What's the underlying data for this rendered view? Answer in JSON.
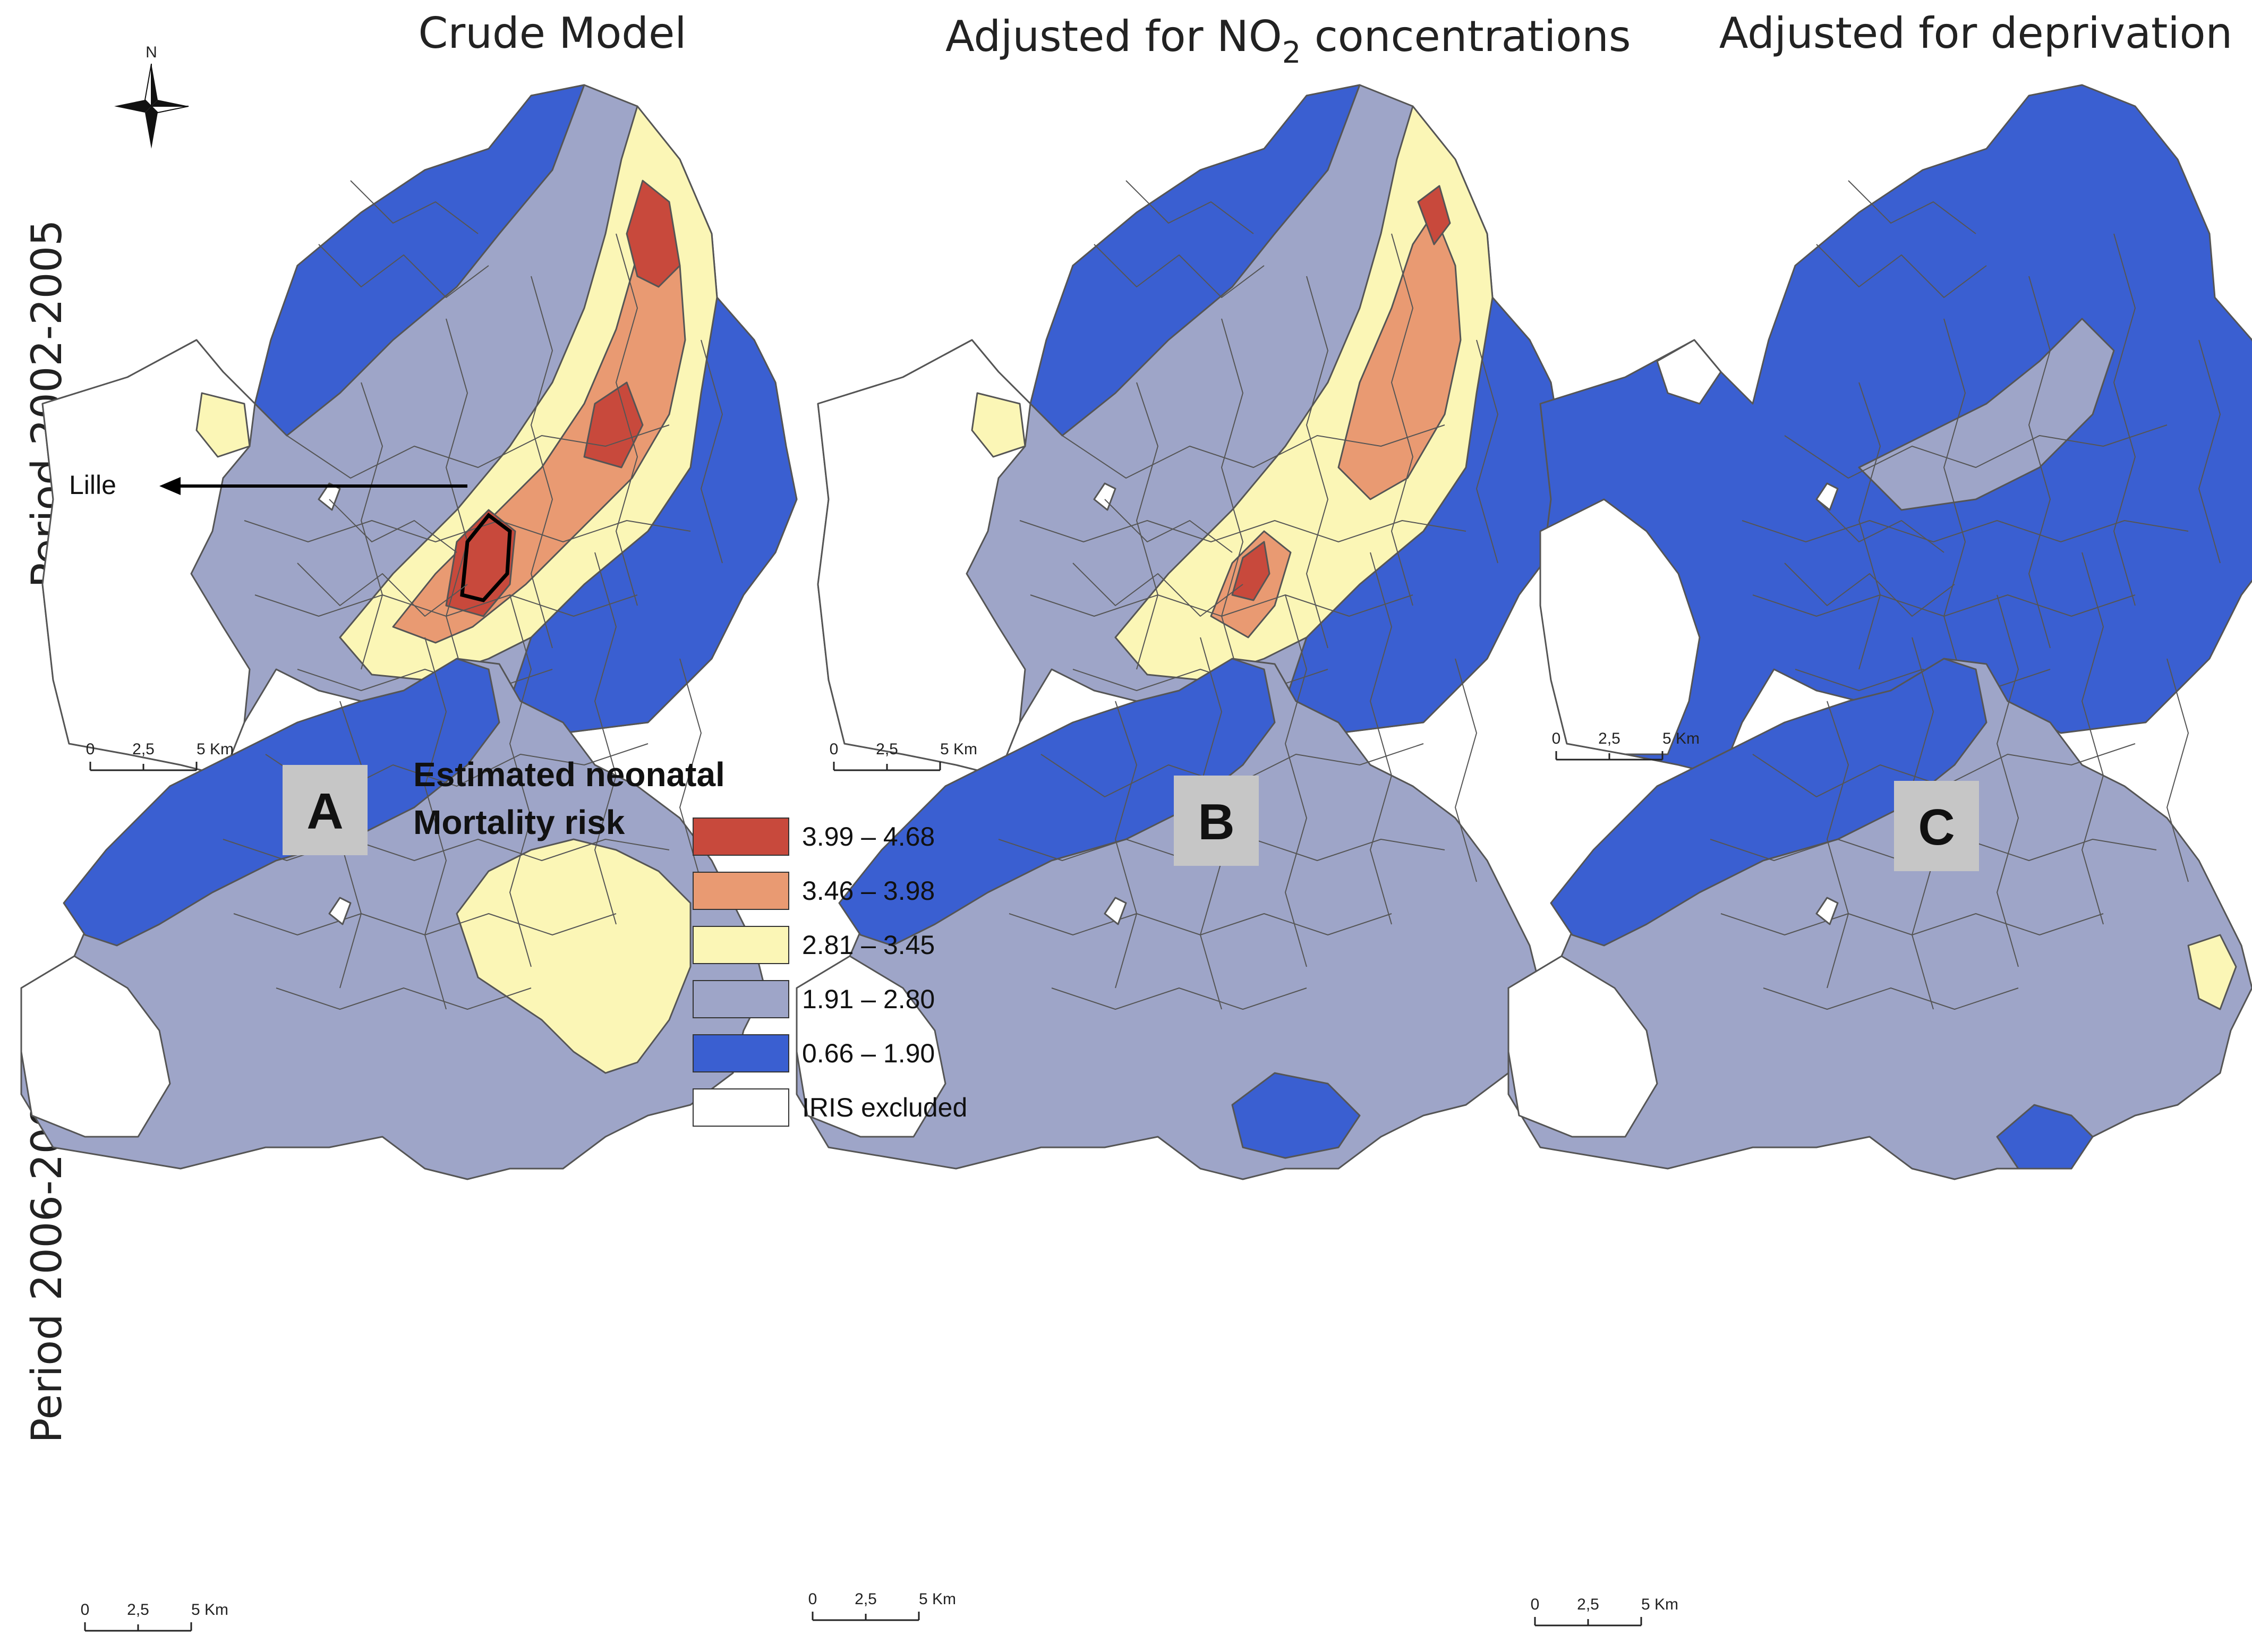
{
  "titles": {
    "crude": "Crude Model",
    "no2_prefix": "Adjusted for NO",
    "no2_sub": "2",
    "no2_suffix": " concentrations",
    "deprivation": "Adjusted for deprivation"
  },
  "periods": [
    "Period 2002-2005",
    "Period 2006-2009"
  ],
  "panel_letters": [
    "A",
    "B",
    "C"
  ],
  "city_label": "Lille",
  "compass": "N",
  "scale": {
    "ticks": [
      "0",
      "2,5",
      "5 Km"
    ]
  },
  "legend": {
    "title_line1": "Estimated neonatal",
    "title_line2": "Mortality risk",
    "items": [
      {
        "label": "3.99 – 4.68",
        "color": "#c8493c"
      },
      {
        "label": "3.46 – 3.98",
        "color": "#e99a72"
      },
      {
        "label": "2.81 – 3.45",
        "color": "#fbf6b6"
      },
      {
        "label": "1.91 – 2.80",
        "color": "#9ea5c8"
      },
      {
        "label": "0.66 – 1.90",
        "color": "#3a5fd1"
      },
      {
        "label": "IRIS excluded",
        "color": "#ffffff"
      }
    ]
  },
  "colors": {
    "c1": "#c8493c",
    "c2": "#e99a72",
    "c3": "#fbf6b6",
    "c4": "#9ea5c8",
    "c5": "#3a5fd1",
    "excluded": "#ffffff"
  }
}
